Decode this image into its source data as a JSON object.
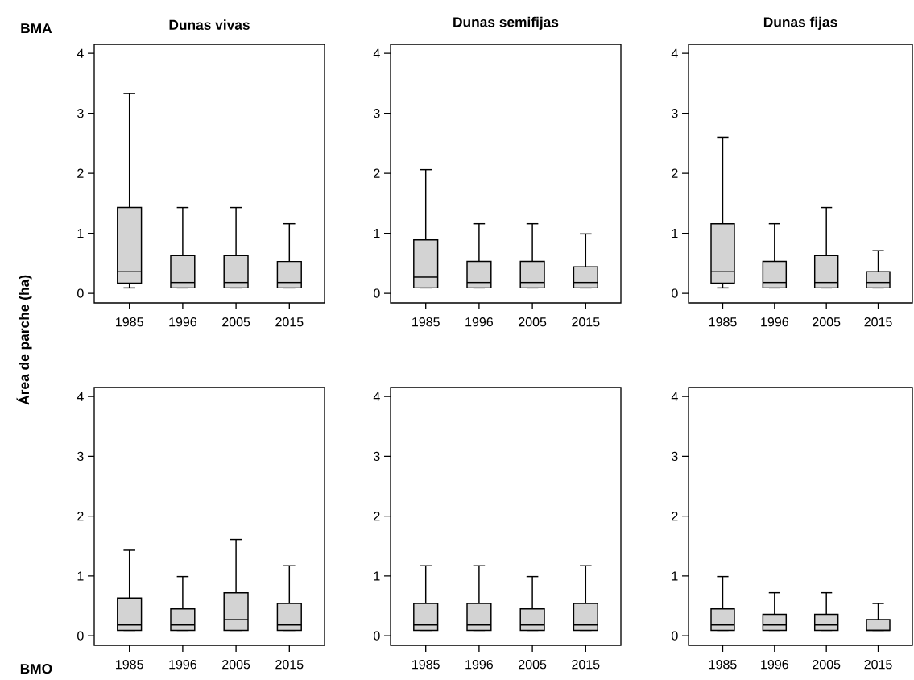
{
  "chart_data": [
    {
      "type": "box",
      "title": "Dunas vivas",
      "ylabel": "Área de parche (ha)",
      "annotations": [
        "BMA"
      ],
      "color": "#d3d3d3",
      "categories": [
        "1985",
        "1996",
        "2005",
        "2015"
      ],
      "ylim": [
        -0.16,
        4.15
      ],
      "yticks": [
        0,
        1,
        2,
        3,
        4
      ],
      "boxes": [
        {
          "low": 0.09,
          "q1": 0.17,
          "median": 0.36,
          "q3": 1.43,
          "high": 3.33
        },
        {
          "low": 0.09,
          "q1": 0.09,
          "median": 0.18,
          "q3": 0.63,
          "high": 1.43
        },
        {
          "low": 0.09,
          "q1": 0.09,
          "median": 0.18,
          "q3": 0.63,
          "high": 1.43
        },
        {
          "low": 0.09,
          "q1": 0.09,
          "median": 0.18,
          "q3": 0.53,
          "high": 1.16
        }
      ]
    },
    {
      "type": "box",
      "title": "Dunas semifijas",
      "color": "#d3d3d3",
      "categories": [
        "1985",
        "1996",
        "2005",
        "2015"
      ],
      "ylim": [
        -0.16,
        4.15
      ],
      "yticks": [
        0,
        1,
        2,
        3,
        4
      ],
      "boxes": [
        {
          "low": 0.09,
          "q1": 0.09,
          "median": 0.27,
          "q3": 0.89,
          "high": 2.06
        },
        {
          "low": 0.09,
          "q1": 0.09,
          "median": 0.18,
          "q3": 0.53,
          "high": 1.16
        },
        {
          "low": 0.09,
          "q1": 0.09,
          "median": 0.18,
          "q3": 0.53,
          "high": 1.16
        },
        {
          "low": 0.09,
          "q1": 0.09,
          "median": 0.18,
          "q3": 0.44,
          "high": 0.99
        }
      ]
    },
    {
      "type": "box",
      "title": "Dunas fijas",
      "color": "#d3d3d3",
      "categories": [
        "1985",
        "1996",
        "2005",
        "2015"
      ],
      "ylim": [
        -0.16,
        4.15
      ],
      "yticks": [
        0,
        1,
        2,
        3,
        4
      ],
      "boxes": [
        {
          "low": 0.09,
          "q1": 0.17,
          "median": 0.36,
          "q3": 1.16,
          "high": 2.6
        },
        {
          "low": 0.09,
          "q1": 0.09,
          "median": 0.18,
          "q3": 0.53,
          "high": 1.16
        },
        {
          "low": 0.09,
          "q1": 0.09,
          "median": 0.18,
          "q3": 0.63,
          "high": 1.43
        },
        {
          "low": 0.09,
          "q1": 0.09,
          "median": 0.18,
          "q3": 0.36,
          "high": 0.71
        }
      ]
    },
    {
      "type": "box",
      "annotations": [
        "BMO"
      ],
      "color": "#d3d3d3",
      "categories": [
        "1985",
        "1996",
        "2005",
        "2015"
      ],
      "ylim": [
        -0.16,
        4.15
      ],
      "yticks": [
        0,
        1,
        2,
        3,
        4
      ],
      "boxes": [
        {
          "low": 0.09,
          "q1": 0.09,
          "median": 0.18,
          "q3": 0.63,
          "high": 1.43
        },
        {
          "low": 0.09,
          "q1": 0.09,
          "median": 0.18,
          "q3": 0.45,
          "high": 0.99
        },
        {
          "low": 0.09,
          "q1": 0.09,
          "median": 0.27,
          "q3": 0.72,
          "high": 1.61
        },
        {
          "low": 0.09,
          "q1": 0.09,
          "median": 0.18,
          "q3": 0.54,
          "high": 1.17
        }
      ]
    },
    {
      "type": "box",
      "color": "#d3d3d3",
      "categories": [
        "1985",
        "1996",
        "2005",
        "2015"
      ],
      "ylim": [
        -0.16,
        4.15
      ],
      "yticks": [
        0,
        1,
        2,
        3,
        4
      ],
      "boxes": [
        {
          "low": 0.09,
          "q1": 0.09,
          "median": 0.18,
          "q3": 0.54,
          "high": 1.17
        },
        {
          "low": 0.09,
          "q1": 0.09,
          "median": 0.18,
          "q3": 0.54,
          "high": 1.17
        },
        {
          "low": 0.09,
          "q1": 0.09,
          "median": 0.18,
          "q3": 0.45,
          "high": 0.99
        },
        {
          "low": 0.09,
          "q1": 0.09,
          "median": 0.18,
          "q3": 0.54,
          "high": 1.17
        }
      ]
    },
    {
      "type": "box",
      "color": "#d3d3d3",
      "categories": [
        "1985",
        "1996",
        "2005",
        "2015"
      ],
      "ylim": [
        -0.16,
        4.15
      ],
      "yticks": [
        0,
        1,
        2,
        3,
        4
      ],
      "boxes": [
        {
          "low": 0.09,
          "q1": 0.09,
          "median": 0.18,
          "q3": 0.45,
          "high": 0.99
        },
        {
          "low": 0.09,
          "q1": 0.09,
          "median": 0.18,
          "q3": 0.36,
          "high": 0.72
        },
        {
          "low": 0.09,
          "q1": 0.09,
          "median": 0.18,
          "q3": 0.36,
          "high": 0.72
        },
        {
          "low": 0.09,
          "q1": 0.09,
          "median": 0.09,
          "q3": 0.27,
          "high": 0.54
        }
      ]
    }
  ]
}
